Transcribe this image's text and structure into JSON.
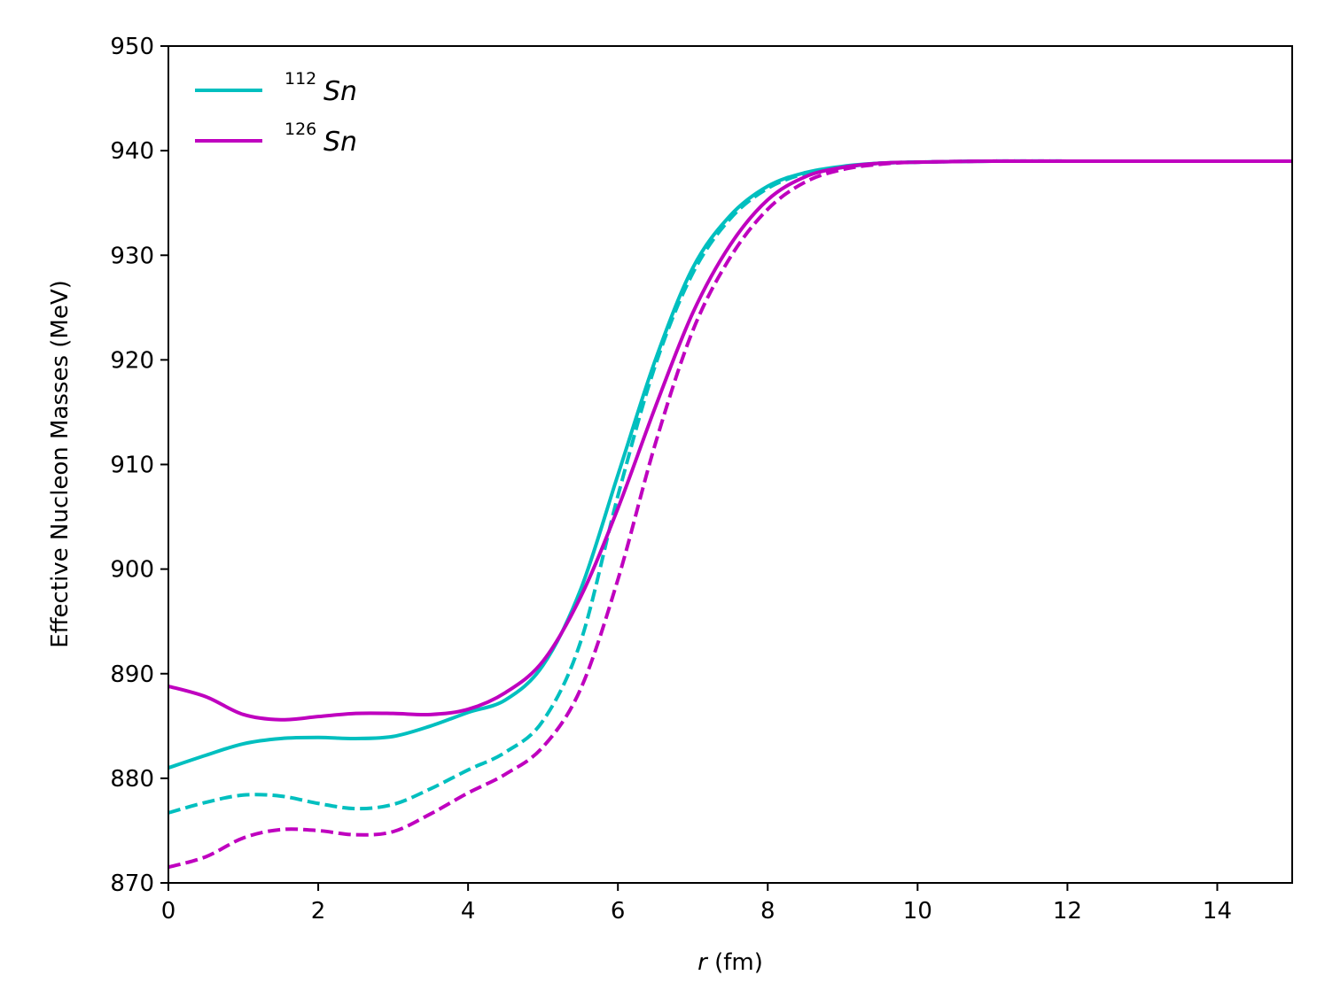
{
  "chart_data": {
    "type": "line",
    "title": "",
    "xlabel_italic": "r",
    "xlabel_rest": " (fm)",
    "ylabel": "Effective Nucleon Masses (MeV)",
    "xlim": [
      0,
      15
    ],
    "ylim": [
      870,
      950
    ],
    "xticks": [
      0,
      2,
      4,
      6,
      8,
      10,
      12,
      14
    ],
    "yticks": [
      870,
      880,
      890,
      900,
      910,
      920,
      930,
      940,
      950
    ],
    "grid": false,
    "legend_position": "top-left",
    "series": [
      {
        "name": "112Sn solid",
        "legend_sup": "112",
        "legend_main": "Sn",
        "in_legend": true,
        "color": "#00bfbf",
        "dash": "solid",
        "x": [
          0,
          0.5,
          1.0,
          1.5,
          2.0,
          2.5,
          3.0,
          3.5,
          4.0,
          4.5,
          5.0,
          5.5,
          6.0,
          6.5,
          7.0,
          7.5,
          8.0,
          8.5,
          9.0,
          9.5,
          10.0,
          11.0,
          12.0,
          13.0,
          14.0,
          15.0
        ],
        "y": [
          881.0,
          882.2,
          883.3,
          883.8,
          883.9,
          883.8,
          884.0,
          885.0,
          886.3,
          887.5,
          890.8,
          898.0,
          909.0,
          920.0,
          928.8,
          933.8,
          936.6,
          937.9,
          938.5,
          938.8,
          938.9,
          939.0,
          939.0,
          939.0,
          939.0,
          939.0
        ]
      },
      {
        "name": "112Sn dashed",
        "in_legend": false,
        "color": "#00bfbf",
        "dash": "dashed",
        "x": [
          0,
          0.5,
          1.0,
          1.5,
          2.0,
          2.5,
          3.0,
          3.5,
          4.0,
          4.5,
          5.0,
          5.5,
          6.0,
          6.5,
          7.0,
          7.5,
          8.0,
          8.5,
          9.0,
          9.5,
          10.0,
          11.0,
          12.0,
          13.0,
          14.0,
          15.0
        ],
        "y": [
          876.7,
          877.7,
          878.4,
          878.3,
          877.6,
          877.1,
          877.5,
          879.0,
          880.8,
          882.5,
          885.5,
          893.0,
          907.0,
          919.5,
          928.3,
          933.5,
          936.4,
          937.8,
          938.4,
          938.8,
          938.9,
          939.0,
          939.0,
          939.0,
          939.0,
          939.0
        ]
      },
      {
        "name": "126Sn solid",
        "legend_sup": "126",
        "legend_main": "Sn",
        "in_legend": true,
        "color": "#bf00bf",
        "dash": "solid",
        "x": [
          0,
          0.5,
          1.0,
          1.5,
          2.0,
          2.5,
          3.0,
          3.5,
          4.0,
          4.5,
          5.0,
          5.5,
          6.0,
          6.5,
          7.0,
          7.5,
          8.0,
          8.5,
          9.0,
          9.5,
          10.0,
          11.0,
          12.0,
          13.0,
          14.0,
          15.0
        ],
        "y": [
          888.8,
          887.8,
          886.1,
          885.6,
          885.9,
          886.2,
          886.2,
          886.1,
          886.6,
          888.2,
          891.2,
          897.3,
          905.8,
          915.5,
          924.5,
          931.0,
          935.3,
          937.5,
          938.4,
          938.8,
          938.9,
          939.0,
          939.0,
          939.0,
          939.0,
          939.0
        ]
      },
      {
        "name": "126Sn dashed",
        "in_legend": false,
        "color": "#bf00bf",
        "dash": "dashed",
        "x": [
          0,
          0.5,
          1.0,
          1.5,
          2.0,
          2.5,
          3.0,
          3.5,
          4.0,
          4.5,
          5.0,
          5.5,
          6.0,
          6.5,
          7.0,
          7.5,
          8.0,
          8.5,
          9.0,
          9.5,
          10.0,
          11.0,
          12.0,
          13.0,
          14.0,
          15.0
        ],
        "y": [
          871.5,
          872.5,
          874.3,
          875.1,
          875.0,
          874.6,
          874.9,
          876.6,
          878.6,
          880.4,
          883.0,
          888.5,
          899.0,
          912.0,
          922.8,
          929.8,
          934.4,
          937.0,
          938.2,
          938.7,
          938.9,
          939.0,
          939.0,
          939.0,
          939.0,
          939.0
        ]
      }
    ]
  }
}
